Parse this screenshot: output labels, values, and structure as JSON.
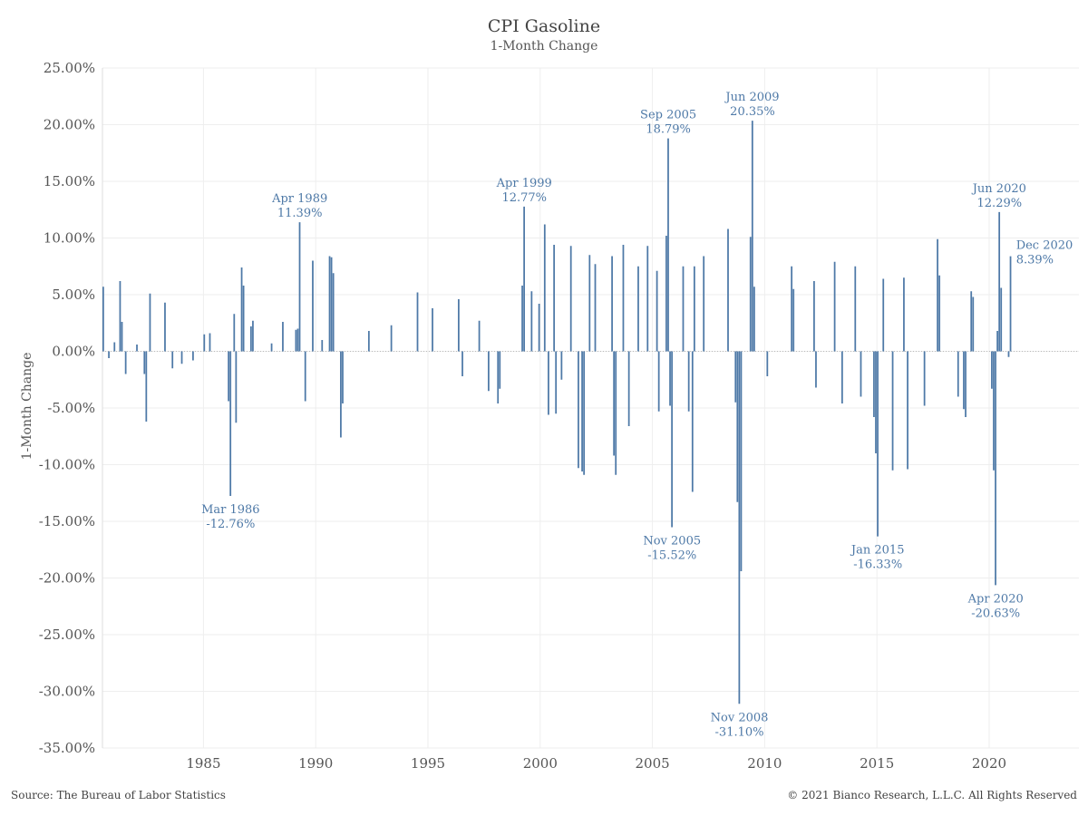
{
  "header": {
    "title": "CPI Gasoline",
    "subtitle": "1-Month Change"
  },
  "footer": {
    "source": "Source: The Bureau of Labor Statistics",
    "copyright": "© 2021 Bianco Research, L.L.C. All Rights Reserved"
  },
  "colors": {
    "bar": "#4e79a7",
    "annotation_text": "#4e79a7",
    "grid": "#eeeeee",
    "axis_text": "#555555"
  },
  "chart_data": {
    "type": "bar",
    "title": "CPI Gasoline",
    "subtitle": "1-Month Change",
    "xlabel": "",
    "ylabel": "1-Month Change",
    "x_start": "1980-07",
    "x_end": "2023-12",
    "xticks": [
      "1985",
      "1990",
      "1995",
      "2000",
      "2005",
      "2010",
      "2015",
      "2020"
    ],
    "ylim": [
      -35,
      25
    ],
    "yticks": [
      "25.00%",
      "20.00%",
      "15.00%",
      "10.00%",
      "5.00%",
      "0.00%",
      "-5.00%",
      "-10.00%",
      "-15.00%",
      "-20.00%",
      "-25.00%",
      "-30.00%",
      "-35.00%"
    ],
    "grid": true,
    "legend": "none",
    "series": [
      {
        "values_note": "monthly % change, one value per month",
        "values": [
          {
            "date": "1980-07",
            "value": 5.7
          },
          {
            "date": "1980-10",
            "value": -0.6
          },
          {
            "date": "1981-01",
            "value": 0.8
          },
          {
            "date": "1981-04",
            "value": 6.2
          },
          {
            "date": "1981-05",
            "value": 2.6
          },
          {
            "date": "1981-07",
            "value": -2.0
          },
          {
            "date": "1982-01",
            "value": 0.6
          },
          {
            "date": "1982-05",
            "value": -2.0
          },
          {
            "date": "1982-06",
            "value": -6.2
          },
          {
            "date": "1982-08",
            "value": 5.1
          },
          {
            "date": "1983-04",
            "value": 4.3
          },
          {
            "date": "1983-08",
            "value": -1.5
          },
          {
            "date": "1984-01",
            "value": -1.1
          },
          {
            "date": "1984-07",
            "value": -0.8
          },
          {
            "date": "1985-01",
            "value": 1.5
          },
          {
            "date": "1985-04",
            "value": 1.6
          },
          {
            "date": "1986-02",
            "value": -4.4
          },
          {
            "date": "1986-03",
            "value": -12.76
          },
          {
            "date": "1986-05",
            "value": 3.3
          },
          {
            "date": "1986-06",
            "value": -6.3
          },
          {
            "date": "1986-09",
            "value": 7.4
          },
          {
            "date": "1986-10",
            "value": 5.8
          },
          {
            "date": "1987-02",
            "value": 2.2
          },
          {
            "date": "1987-03",
            "value": 2.7
          },
          {
            "date": "1988-01",
            "value": 0.7
          },
          {
            "date": "1988-07",
            "value": 2.6
          },
          {
            "date": "1989-02",
            "value": 1.9
          },
          {
            "date": "1989-03",
            "value": 2.0
          },
          {
            "date": "1989-04",
            "value": 11.39
          },
          {
            "date": "1989-07",
            "value": -4.4
          },
          {
            "date": "1989-11",
            "value": 8.0
          },
          {
            "date": "1990-04",
            "value": 1.0
          },
          {
            "date": "1990-08",
            "value": 8.4
          },
          {
            "date": "1990-09",
            "value": 8.3
          },
          {
            "date": "1990-10",
            "value": 6.9
          },
          {
            "date": "1991-02",
            "value": -7.6
          },
          {
            "date": "1991-03",
            "value": -4.6
          },
          {
            "date": "1992-05",
            "value": 1.8
          },
          {
            "date": "1993-05",
            "value": 2.3
          },
          {
            "date": "1994-07",
            "value": 5.2
          },
          {
            "date": "1995-03",
            "value": 3.8
          },
          {
            "date": "1996-05",
            "value": 4.6
          },
          {
            "date": "1996-07",
            "value": -2.2
          },
          {
            "date": "1997-04",
            "value": 2.7
          },
          {
            "date": "1997-09",
            "value": -3.5
          },
          {
            "date": "1998-02",
            "value": -4.6
          },
          {
            "date": "1998-03",
            "value": -3.3
          },
          {
            "date": "1999-03",
            "value": 5.8
          },
          {
            "date": "1999-04",
            "value": 12.77
          },
          {
            "date": "1999-08",
            "value": 5.3
          },
          {
            "date": "1999-12",
            "value": 4.2
          },
          {
            "date": "2000-03",
            "value": 11.2
          },
          {
            "date": "2000-05",
            "value": -5.6
          },
          {
            "date": "2000-08",
            "value": 9.4
          },
          {
            "date": "2000-09",
            "value": -5.5
          },
          {
            "date": "2000-12",
            "value": -2.5
          },
          {
            "date": "2001-05",
            "value": 9.3
          },
          {
            "date": "2001-09",
            "value": -10.3
          },
          {
            "date": "2001-11",
            "value": -10.6
          },
          {
            "date": "2001-12",
            "value": -10.9
          },
          {
            "date": "2002-03",
            "value": 8.5
          },
          {
            "date": "2002-06",
            "value": 7.7
          },
          {
            "date": "2003-03",
            "value": 8.4
          },
          {
            "date": "2003-04",
            "value": -9.2
          },
          {
            "date": "2003-05",
            "value": -10.9
          },
          {
            "date": "2003-09",
            "value": 9.4
          },
          {
            "date": "2003-12",
            "value": -6.6
          },
          {
            "date": "2004-05",
            "value": 7.5
          },
          {
            "date": "2004-10",
            "value": 9.3
          },
          {
            "date": "2005-03",
            "value": 7.1
          },
          {
            "date": "2005-04",
            "value": -5.3
          },
          {
            "date": "2005-08",
            "value": 10.2
          },
          {
            "date": "2005-09",
            "value": 18.79
          },
          {
            "date": "2005-10",
            "value": -4.8
          },
          {
            "date": "2005-11",
            "value": -15.52
          },
          {
            "date": "2006-05",
            "value": 7.5
          },
          {
            "date": "2006-08",
            "value": -5.3
          },
          {
            "date": "2006-10",
            "value": -12.4
          },
          {
            "date": "2006-11",
            "value": 7.5
          },
          {
            "date": "2007-04",
            "value": 8.4
          },
          {
            "date": "2008-05",
            "value": 10.8
          },
          {
            "date": "2008-09",
            "value": -4.5
          },
          {
            "date": "2008-10",
            "value": -13.3
          },
          {
            "date": "2008-11",
            "value": -31.1
          },
          {
            "date": "2008-12",
            "value": -19.4
          },
          {
            "date": "2009-05",
            "value": 10.1
          },
          {
            "date": "2009-06",
            "value": 20.35
          },
          {
            "date": "2009-07",
            "value": 5.7
          },
          {
            "date": "2010-02",
            "value": -2.2
          },
          {
            "date": "2011-03",
            "value": 7.5
          },
          {
            "date": "2011-04",
            "value": 5.5
          },
          {
            "date": "2012-03",
            "value": 6.2
          },
          {
            "date": "2012-04",
            "value": -3.2
          },
          {
            "date": "2013-02",
            "value": 7.9
          },
          {
            "date": "2013-06",
            "value": -4.6
          },
          {
            "date": "2014-01",
            "value": 7.5
          },
          {
            "date": "2014-04",
            "value": -4.0
          },
          {
            "date": "2014-11",
            "value": -5.8
          },
          {
            "date": "2014-12",
            "value": -9.0
          },
          {
            "date": "2015-01",
            "value": -16.33
          },
          {
            "date": "2015-04",
            "value": 6.4
          },
          {
            "date": "2015-09",
            "value": -10.5
          },
          {
            "date": "2016-03",
            "value": 6.5
          },
          {
            "date": "2016-05",
            "value": -10.4
          },
          {
            "date": "2017-02",
            "value": -4.8
          },
          {
            "date": "2017-09",
            "value": 9.9
          },
          {
            "date": "2017-10",
            "value": 6.7
          },
          {
            "date": "2018-08",
            "value": -4.0
          },
          {
            "date": "2018-11",
            "value": -5.1
          },
          {
            "date": "2018-12",
            "value": -5.8
          },
          {
            "date": "2019-03",
            "value": 5.3
          },
          {
            "date": "2019-04",
            "value": 4.8
          },
          {
            "date": "2020-02",
            "value": -3.3
          },
          {
            "date": "2020-03",
            "value": -10.5
          },
          {
            "date": "2020-04",
            "value": -20.63
          },
          {
            "date": "2020-05",
            "value": 1.8
          },
          {
            "date": "2020-06",
            "value": 12.29
          },
          {
            "date": "2020-07",
            "value": 5.6
          },
          {
            "date": "2020-11",
            "value": -0.5
          },
          {
            "date": "2020-12",
            "value": 8.39
          }
        ]
      }
    ],
    "annotations": [
      {
        "date": "1986-03",
        "label": "Mar 1986",
        "value_label": "-12.76%",
        "value": -12.76
      },
      {
        "date": "1989-04",
        "label": "Apr 1989",
        "value_label": "11.39%",
        "value": 11.39
      },
      {
        "date": "1999-04",
        "label": "Apr 1999",
        "value_label": "12.77%",
        "value": 12.77
      },
      {
        "date": "2005-09",
        "label": "Sep 2005",
        "value_label": "18.79%",
        "value": 18.79
      },
      {
        "date": "2005-11",
        "label": "Nov 2005",
        "value_label": "-15.52%",
        "value": -15.52
      },
      {
        "date": "2008-11",
        "label": "Nov 2008",
        "value_label": "-31.10%",
        "value": -31.1
      },
      {
        "date": "2009-06",
        "label": "Jun 2009",
        "value_label": "20.35%",
        "value": 20.35
      },
      {
        "date": "2015-01",
        "label": "Jan 2015",
        "value_label": "-16.33%",
        "value": -16.33
      },
      {
        "date": "2020-04",
        "label": "Apr 2020",
        "value_label": "-20.63%",
        "value": -20.63
      },
      {
        "date": "2020-06",
        "label": "Jun 2020",
        "value_label": "12.29%",
        "value": 12.29
      },
      {
        "date": "2020-12",
        "label": "Dec 2020",
        "value_label": "8.39%",
        "value": 8.39
      }
    ]
  }
}
